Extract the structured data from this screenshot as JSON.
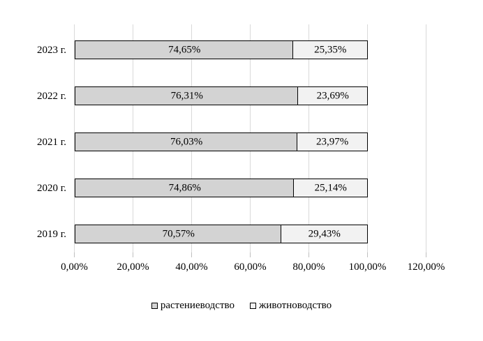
{
  "chart_data": {
    "type": "bar",
    "orientation": "horizontal",
    "stacked": true,
    "title": "",
    "xlabel": "",
    "ylabel": "",
    "categories": [
      "2023 г.",
      "2022 г.",
      "2021 г.",
      "2020 г.",
      "2019 г."
    ],
    "series": [
      {
        "name": "растениеводство",
        "values": [
          74.65,
          76.31,
          76.03,
          74.86,
          70.57
        ],
        "labels": [
          "74,65%",
          "76,31%",
          "76,03%",
          "74,86%",
          "70,57%"
        ],
        "color": "#d3d3d3"
      },
      {
        "name": "животноводство",
        "values": [
          25.35,
          23.69,
          23.97,
          25.14,
          29.43
        ],
        "labels": [
          "25,35%",
          "23,69%",
          "23,97%",
          "25,14%",
          "29,43%"
        ],
        "color": "#f2f2f2"
      }
    ],
    "xlim": [
      0,
      120
    ],
    "x_ticks": [
      0,
      20,
      40,
      60,
      80,
      100,
      120
    ],
    "x_tick_labels": [
      "0,00%",
      "20,00%",
      "40,00%",
      "60,00%",
      "80,00%",
      "100,00%",
      "120,00%"
    ],
    "grid": "vertical",
    "legend_position": "bottom",
    "legend": [
      "растениеводство",
      "животноводство"
    ],
    "colors": {
      "bar_border": "#000000",
      "gridline": "#d9d9d9",
      "tickmark": "#bfbfbf",
      "text": "#000000",
      "background": "#ffffff"
    }
  }
}
